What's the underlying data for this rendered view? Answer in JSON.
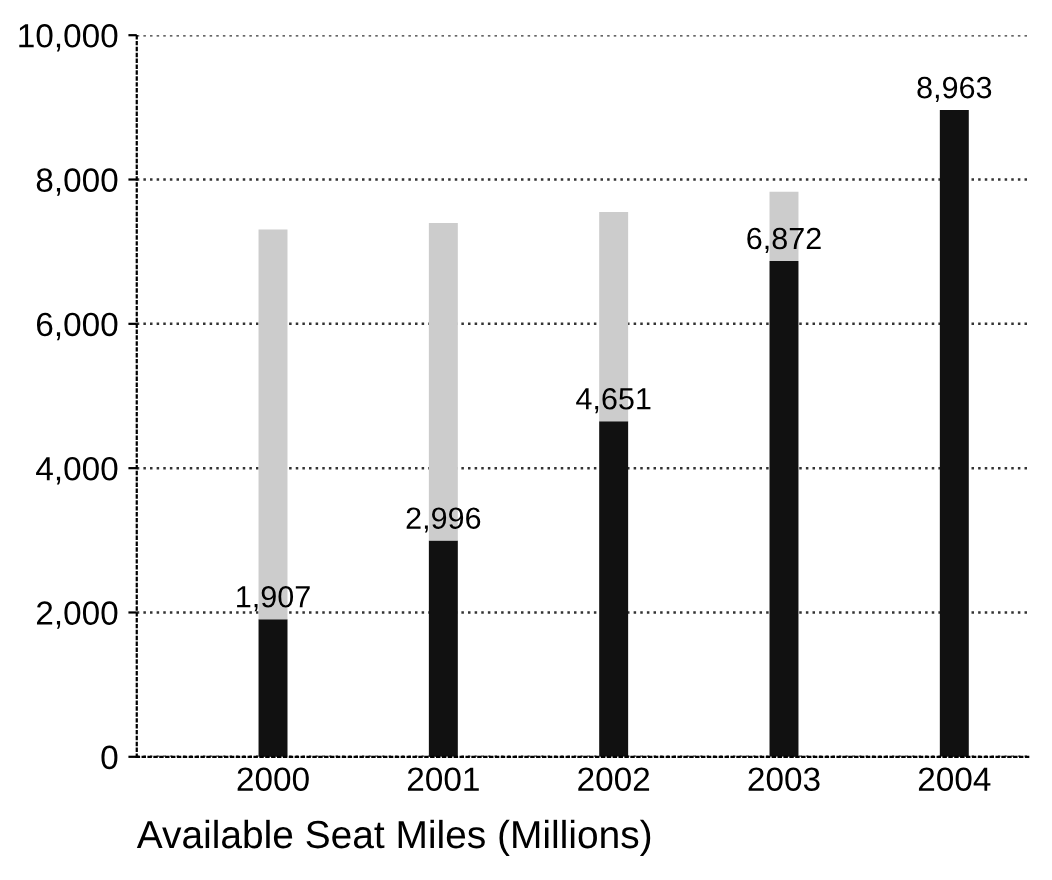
{
  "chart_data": {
    "type": "bar",
    "xlabel": "Available Seat Miles (Millions)",
    "categories": [
      "2000",
      "2001",
      "2002",
      "2003",
      "2004"
    ],
    "stacked": true,
    "series": [
      {
        "color": "#111111",
        "values": [
          1907,
          2996,
          4651,
          6872,
          8963
        ],
        "value_labels": [
          "1,907",
          "2,996",
          "4,651",
          "6,872",
          "8,963"
        ]
      },
      {
        "color": "#cccccc",
        "values": [
          5400,
          4400,
          2900,
          960,
          null
        ]
      }
    ],
    "ylim": [
      0,
      10000
    ],
    "yticks": [
      {
        "value": 0,
        "label": "0"
      },
      {
        "value": 2000,
        "label": "2,000"
      },
      {
        "value": 4000,
        "label": "4,000"
      },
      {
        "value": 6000,
        "label": "6,000"
      },
      {
        "value": 8000,
        "label": "8,000"
      },
      {
        "value": 10000,
        "label": "10,000"
      }
    ],
    "grid": "y"
  }
}
